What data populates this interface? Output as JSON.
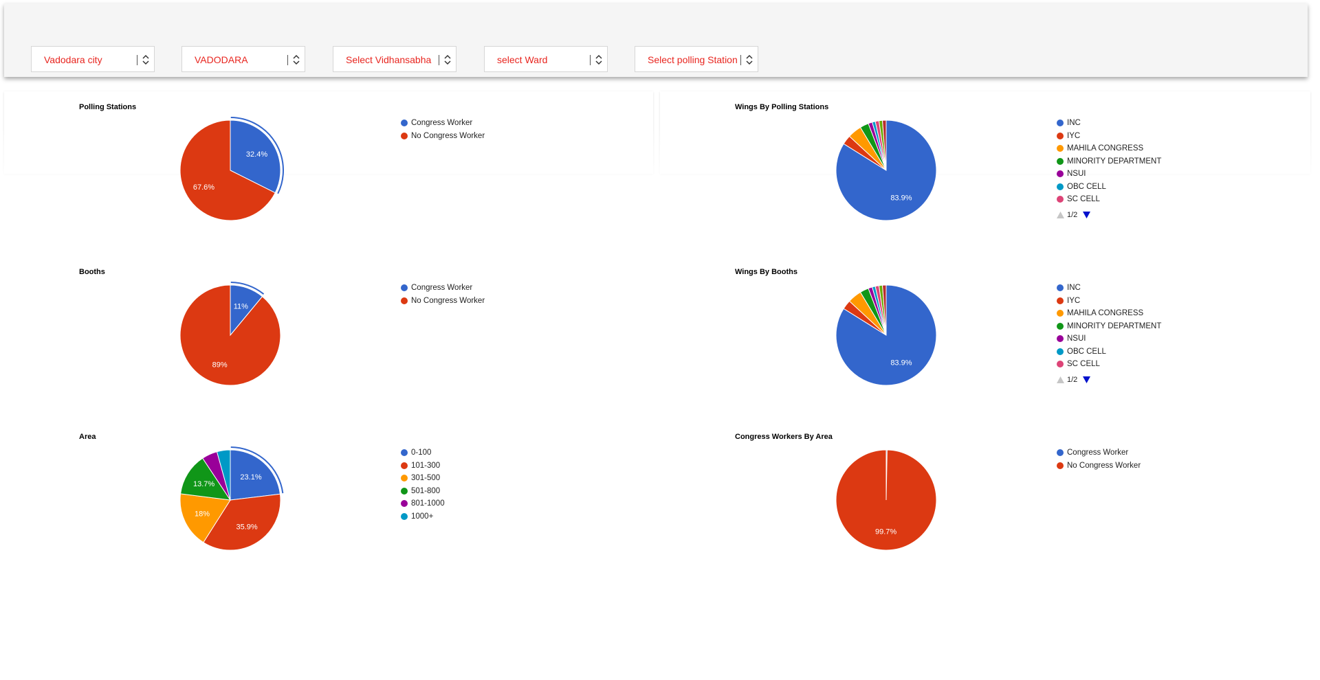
{
  "filters": [
    {
      "value": "Vadodara city"
    },
    {
      "value": "VADODARA"
    },
    {
      "value": "Select Vidhansabha"
    },
    {
      "value": "select Ward"
    },
    {
      "value": "Select polling Station"
    }
  ],
  "colors": {
    "accent_text": "#e8251f",
    "pie_palette": [
      "#3366cc",
      "#dc3912",
      "#ff9900",
      "#109618",
      "#990099",
      "#0099c6",
      "#dd4477",
      "#66aa00",
      "#b82e2e"
    ]
  },
  "chart_data": [
    {
      "id": "polling_stations",
      "type": "pie",
      "title": "Polling Stations",
      "labels": [
        "Congress Worker",
        "No Congress Worker"
      ],
      "values": [
        32.4,
        67.6
      ],
      "slice_labels": [
        "32.4%",
        "67.6%"
      ],
      "highlighted_index": 0,
      "legend_placement": "right"
    },
    {
      "id": "wings_by_polling_stations",
      "type": "pie",
      "title": "Wings By Polling Stations",
      "labels": [
        "INC",
        "IYC",
        "MAHILA CONGRESS",
        "MINORITY DEPARTMENT",
        "NSUI",
        "OBC CELL",
        "SC CELL",
        "",
        ""
      ],
      "values": [
        83.9,
        3.0,
        4.5,
        2.8,
        1.3,
        1.0,
        1.2,
        1.1,
        1.2
      ],
      "slice_labels": [
        "83.9%",
        "",
        "",
        "",
        "",
        "",
        "",
        "",
        ""
      ],
      "legend_count": 7,
      "legend_page": "1/2",
      "legend_placement": "right"
    },
    {
      "id": "booths",
      "type": "pie",
      "title": "Booths",
      "labels": [
        "Congress Worker",
        "No Congress Worker"
      ],
      "values": [
        11,
        89
      ],
      "slice_labels": [
        "11%",
        "89%"
      ],
      "highlighted_index": 0,
      "legend_placement": "right"
    },
    {
      "id": "wings_by_booths",
      "type": "pie",
      "title": "Wings By Booths",
      "labels": [
        "INC",
        "IYC",
        "MAHILA CONGRESS",
        "MINORITY DEPARTMENT",
        "NSUI",
        "OBC CELL",
        "SC CELL",
        "",
        ""
      ],
      "values": [
        83.9,
        3.0,
        4.5,
        2.8,
        1.3,
        1.0,
        1.2,
        1.1,
        1.2
      ],
      "slice_labels": [
        "83.9%",
        "",
        "",
        "",
        "",
        "",
        "",
        "",
        ""
      ],
      "legend_count": 7,
      "legend_page": "1/2",
      "legend_placement": "right"
    },
    {
      "id": "area",
      "type": "pie",
      "title": "Area",
      "labels": [
        "0-100",
        "101-300",
        "301-500",
        "501-800",
        "801-1000",
        "1000+"
      ],
      "values": [
        23.1,
        35.9,
        18,
        13.7,
        5.0,
        4.3
      ],
      "slice_labels": [
        "23.1%",
        "35.9%",
        "18%",
        "13.7%",
        "",
        ""
      ],
      "highlighted_index": 0,
      "legend_placement": "right"
    },
    {
      "id": "congress_workers_by_area",
      "type": "pie",
      "title": "Congress Workers By Area",
      "labels": [
        "Congress Worker",
        "No Congress Worker"
      ],
      "values": [
        0.3,
        99.7
      ],
      "slice_labels": [
        "",
        "99.7%"
      ],
      "legend_placement": "right"
    }
  ]
}
